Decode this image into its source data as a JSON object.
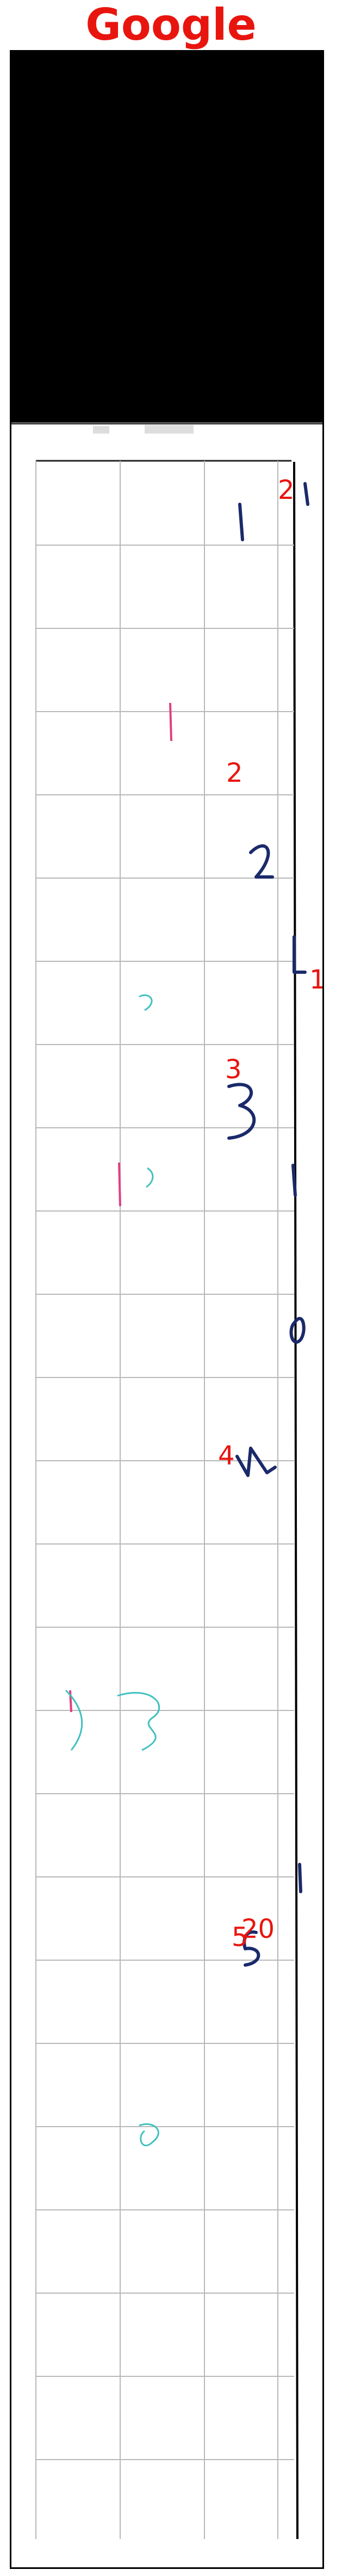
{
  "header": {
    "title": "Google"
  },
  "annotations": [
    "2",
    "2",
    "1",
    "3",
    "4",
    "5",
    "20"
  ],
  "colors": {
    "title": "#e8150f",
    "annotation": "#e8150f",
    "ink": "#1a2a6a",
    "grid": "#b8b8b8",
    "frame": "#000000"
  }
}
